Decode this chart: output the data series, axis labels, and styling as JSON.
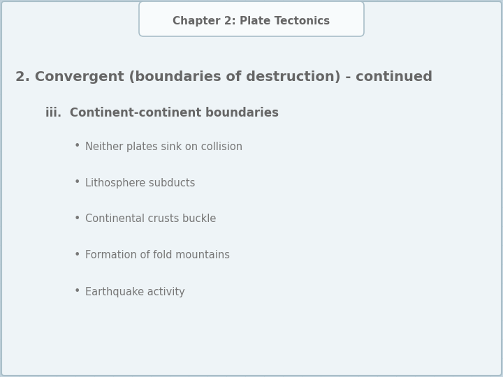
{
  "title": "Chapter 2: Plate Tectonics",
  "heading": "2. Convergent (boundaries of destruction) - continued",
  "subheading": "iii.  Continent-continent boundaries",
  "bullets": [
    "Neither plates sink on collision",
    "Lithosphere subducts",
    "Continental crusts buckle",
    "Formation of fold mountains",
    "Earthquake activity"
  ],
  "bg_color": "#c8d8e2",
  "slide_bg": "#eef4f7",
  "grid_color": "#b8ccd6",
  "title_box_bg": "#f8fbfc",
  "title_box_border": "#aabfc9",
  "heading_color": "#666666",
  "subheading_color": "#666666",
  "bullet_color": "#777777",
  "title_fontsize": 11,
  "heading_fontsize": 14,
  "subheading_fontsize": 12,
  "bullet_fontsize": 10.5
}
